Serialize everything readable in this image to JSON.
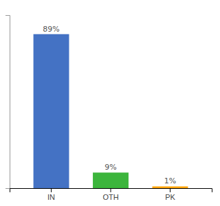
{
  "chart_data": {
    "type": "bar",
    "categories": [
      "IN",
      "OTH",
      "PK"
    ],
    "values": [
      89,
      9,
      1
    ],
    "value_labels": [
      "89%",
      "9%",
      "1%"
    ],
    "colors": [
      "#4472C4",
      "#3CB53C",
      "#FFA500"
    ],
    "ylim": [
      0,
      100
    ],
    "data_labels": true,
    "tick_labels": "x",
    "grid": false
  }
}
